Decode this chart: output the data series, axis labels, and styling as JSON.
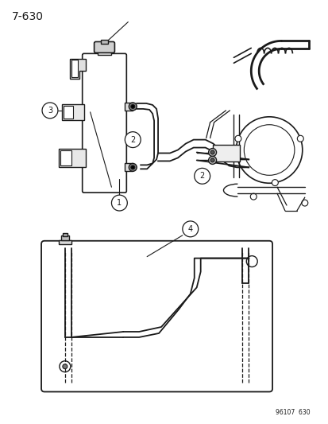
{
  "title": "7-630",
  "footnote": "96107  630",
  "bg": "#ffffff",
  "lc": "#1a1a1a",
  "fig_w": 4.14,
  "fig_h": 5.33,
  "dpi": 100
}
